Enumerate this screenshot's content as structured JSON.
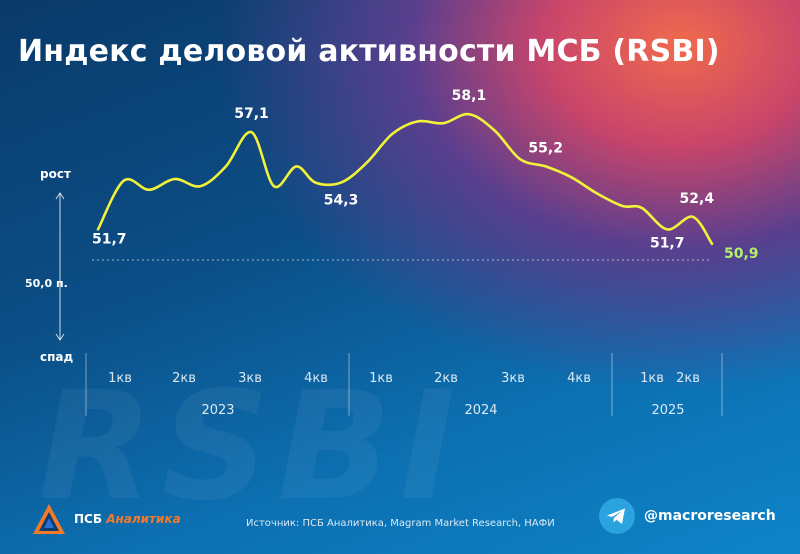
{
  "title": "Индекс деловой активности МСБ (RSBI)",
  "watermark": "RSBI",
  "axis": {
    "up_label": "рост",
    "down_label": "спад",
    "baseline_label": "50,0 п.",
    "baseline_value": 50.0
  },
  "chart_data": {
    "type": "line",
    "title": "Индекс деловой активности МСБ (RSBI)",
    "ylim": [
      46,
      60
    ],
    "baseline": 50.0,
    "x_quarter_labels": [
      "1кв",
      "2кв",
      "3кв",
      "4кв",
      "1кв",
      "2кв",
      "3кв",
      "4кв",
      "1кв",
      "2кв"
    ],
    "x_year_labels": [
      "2023",
      "2024",
      "2025"
    ],
    "series": [
      {
        "color": "#f2f23a",
        "x": [
          0,
          0.4,
          0.8,
          1.2,
          1.6,
          2.0,
          2.4,
          2.75,
          3.1,
          3.4,
          3.8,
          4.2,
          4.6,
          5.0,
          5.4,
          5.8,
          6.2,
          6.6,
          7.0,
          7.4,
          7.8,
          8.2,
          8.5,
          8.9,
          9.3,
          9.6
        ],
        "values": [
          51.7,
          54.4,
          53.9,
          54.5,
          54.1,
          55.2,
          57.1,
          54.1,
          55.2,
          54.3,
          54.3,
          55.4,
          57.0,
          57.7,
          57.6,
          58.1,
          57.2,
          55.6,
          55.2,
          54.6,
          53.7,
          53.0,
          52.9,
          51.7,
          52.4,
          50.9
        ]
      }
    ],
    "point_labels": [
      {
        "text": "51,7",
        "x": 0,
        "y": 51.7
      },
      {
        "text": "57,1",
        "x": 2.4,
        "y": 57.1
      },
      {
        "text": "54,3",
        "x": 3.8,
        "y": 54.3
      },
      {
        "text": "58,1",
        "x": 5.8,
        "y": 58.1
      },
      {
        "text": "55,2",
        "x": 7.0,
        "y": 55.2
      },
      {
        "text": "51,7",
        "x": 8.9,
        "y": 51.7
      },
      {
        "text": "52,4",
        "x": 9.3,
        "y": 52.4
      },
      {
        "text": "50,9",
        "x": 9.6,
        "y": 50.9
      }
    ]
  },
  "footer": {
    "logo_text_main": "ПСБ",
    "logo_text_accent": "Аналитика",
    "source": "Источник: ПСБ Аналитика, Magram Market Research, НАФИ",
    "telegram_handle": "@macroresearch",
    "telegram_icon": "telegram-icon",
    "logo_icon": "psb-logo-icon"
  },
  "colors": {
    "line": "#f2f23a",
    "last_value": "#b6f06a",
    "accent_orange": "#f37a2a",
    "telegram_blue": "#2aa3df"
  }
}
